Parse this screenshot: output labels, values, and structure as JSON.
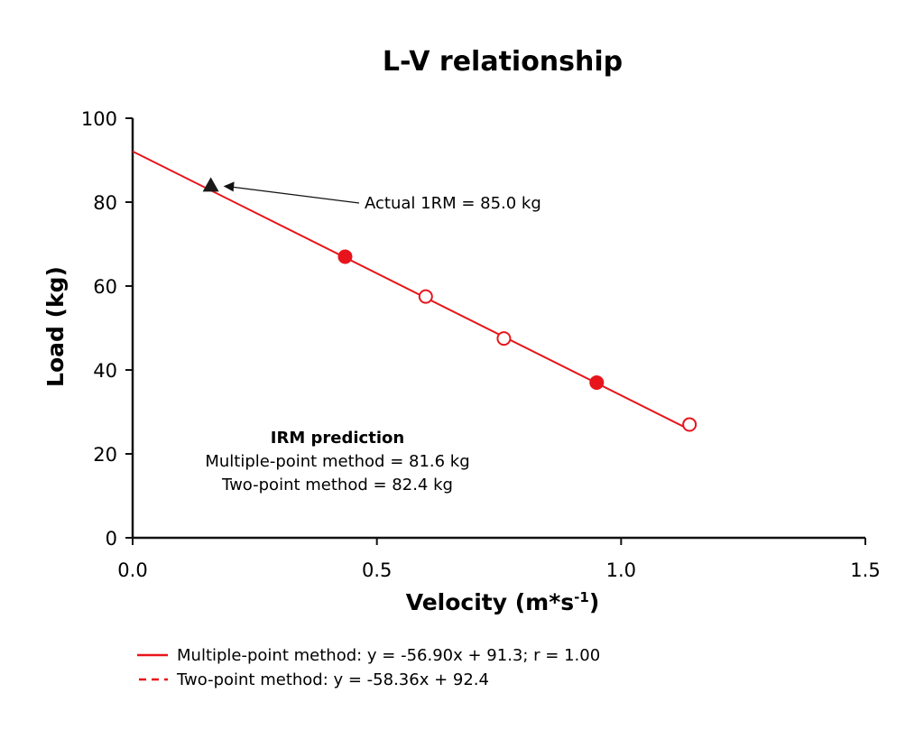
{
  "chart_data": {
    "type": "scatter",
    "title": "L-V relationship",
    "xlabel": "Velocity (m*s",
    "xlabel_sup": "-1",
    "xlabel_end": ")",
    "ylabel": "Load (kg)",
    "xlim": [
      0.0,
      1.5
    ],
    "ylim": [
      0,
      100
    ],
    "xticks": [
      "0.0",
      "0.5",
      "1.0",
      "1.5"
    ],
    "yticks": [
      "0",
      "20",
      "40",
      "60",
      "80",
      "100"
    ],
    "grid": false,
    "line_color": "#e8141c",
    "fit_line": {
      "x": [
        0.0,
        1.14
      ],
      "y": [
        92.1,
        25.8
      ]
    },
    "series": [
      {
        "style": "filled-circle",
        "x": [
          0.435,
          0.95
        ],
        "y": [
          67.0,
          37.0
        ]
      },
      {
        "style": "open-circle",
        "x": [
          0.6,
          0.76,
          1.14
        ],
        "y": [
          57.5,
          47.5,
          27.0
        ]
      }
    ],
    "marker_1rm": {
      "x": 0.16,
      "y": 84.0
    },
    "annotation": "Actual 1RM = 85.0 kg",
    "prediction_box": {
      "title": "IRM prediction",
      "lines": [
        "Multiple-point method = 81.6 kg",
        "Two-point method = 82.4 kg"
      ]
    },
    "legend": [
      {
        "label": "Multiple-point method: y = -56.90x + 91.3; r = 1.00",
        "style": "solid"
      },
      {
        "label": "Two-point method: y = -58.36x + 92.4",
        "style": "dashed"
      }
    ],
    "legend_position": "bottom-left"
  }
}
